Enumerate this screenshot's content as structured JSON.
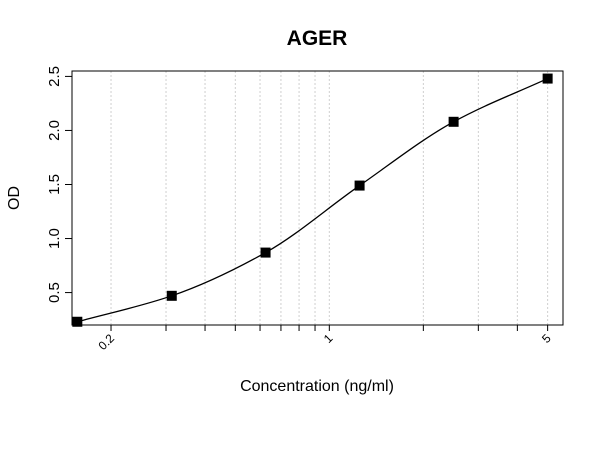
{
  "chart_data": {
    "type": "scatter",
    "title": "AGER",
    "xlabel": "Concentration (ng/ml)",
    "ylabel": "OD",
    "x_scale": "log",
    "xlim": [
      0.15,
      5.6
    ],
    "ylim": [
      0.2,
      2.55
    ],
    "x_ticks": [
      {
        "value": 0.2,
        "label": "0.2"
      },
      {
        "value": 1,
        "label": "1"
      },
      {
        "value": 5,
        "label": "5"
      }
    ],
    "y_ticks": [
      {
        "value": 0.5,
        "label": "0.5"
      },
      {
        "value": 1.0,
        "label": "1.0"
      },
      {
        "value": 1.5,
        "label": "1.5"
      },
      {
        "value": 2.0,
        "label": "2.0"
      },
      {
        "value": 2.5,
        "label": "2.5"
      }
    ],
    "x_gridlines": [
      0.2,
      0.3,
      0.4,
      0.5,
      0.6,
      0.7,
      0.8,
      0.9,
      1,
      2,
      3,
      4,
      5
    ],
    "grid": "x-only, dotted",
    "marker": "filled square",
    "points": {
      "x": [
        0.156,
        0.313,
        0.625,
        1.25,
        2.5,
        5.0
      ],
      "y": [
        0.23,
        0.47,
        0.87,
        1.49,
        2.08,
        2.48
      ]
    },
    "curve": "smooth fitted line"
  }
}
